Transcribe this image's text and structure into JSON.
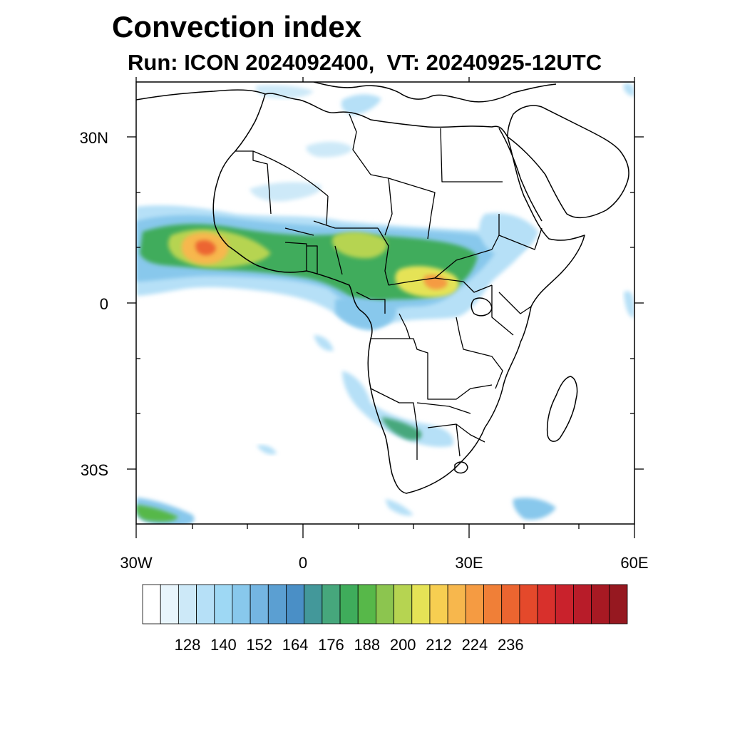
{
  "title": "Convection index",
  "subtitle": "Run: ICON 2024092400,  VT: 20240925-12UTC",
  "axes": {
    "lon_labels": [
      "30W",
      "0",
      "30E",
      "60E"
    ],
    "lat_labels": [
      "30N",
      "0",
      "30S"
    ],
    "lon_range": [
      -30,
      60
    ],
    "lat_range": [
      -40,
      40
    ]
  },
  "colorbar": {
    "labels": [
      "128",
      "140",
      "152",
      "164",
      "176",
      "188",
      "200",
      "212",
      "224",
      "236"
    ],
    "colors": [
      "#ffffff",
      "#e8f5fc",
      "#cde9f8",
      "#b6e0f7",
      "#9ed8f4",
      "#88c8ec",
      "#74b5e2",
      "#5b9fd2",
      "#4a8fc6",
      "#43989a",
      "#46a77c",
      "#3fac5b",
      "#57b849",
      "#8cc54f",
      "#b6d451",
      "#e5e356",
      "#f7ce51",
      "#f7b74d",
      "#f59b42",
      "#f07f37",
      "#ec6530",
      "#e4492b",
      "#d8302c",
      "#c9222c",
      "#b81c29",
      "#a71923",
      "#961820"
    ]
  },
  "colors": {
    "coast": "#000000",
    "frame": "#000000"
  }
}
